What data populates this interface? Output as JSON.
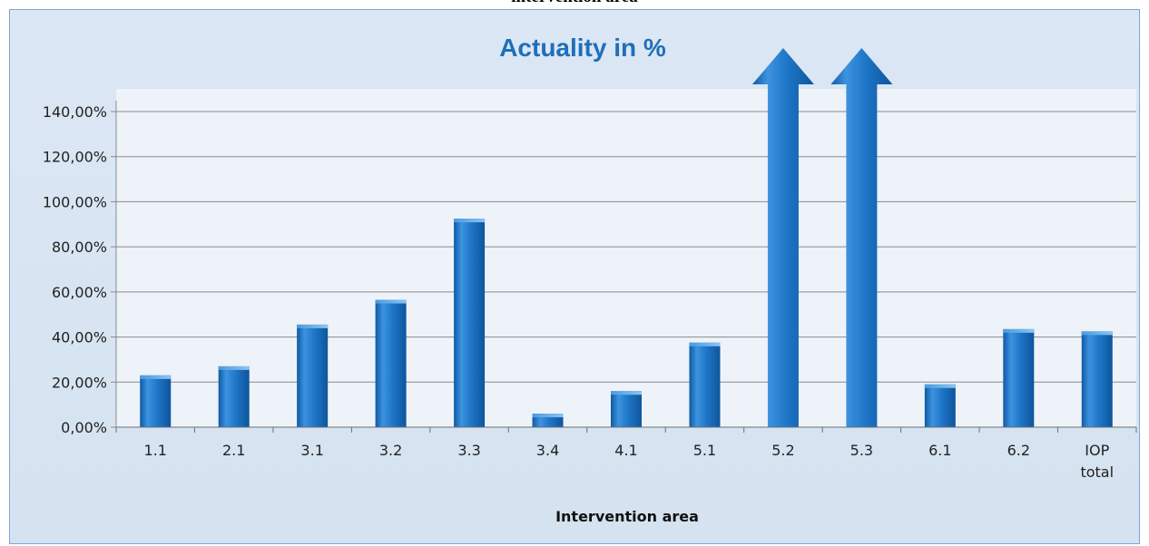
{
  "page": {
    "caption": "intervention area"
  },
  "chart_data": {
    "type": "bar",
    "title": "Actuality in %",
    "xlabel": "Intervention area",
    "ylabel": "",
    "categories": [
      "1.1",
      "2.1",
      "3.1",
      "3.2",
      "3.3",
      "3.4",
      "4.1",
      "5.1",
      "5.2",
      "5.3",
      "6.1",
      "6.2",
      "IOP total"
    ],
    "values": [
      23,
      27,
      45.5,
      56.5,
      92.5,
      6,
      16,
      37.5,
      142,
      150,
      19,
      43.5,
      42.5
    ],
    "value_notes": {
      "5.3": "exceeds axis maximum; drawn as an up-arrow"
    },
    "ylim": [
      0,
      140
    ],
    "y_ticks": [
      0,
      20,
      40,
      60,
      80,
      100,
      120,
      140
    ],
    "y_tick_labels": [
      "0,00%",
      "20,00%",
      "40,00%",
      "60,00%",
      "80,00%",
      "100,00%",
      "120,00%",
      "140,00%"
    ],
    "grid": true,
    "legend": "none",
    "colors": {
      "bar": "#1f77c8",
      "bar_dark": "#0f5aa5",
      "bar_light": "#5fa8e8",
      "title": "#1f6fb8",
      "grid": "#8a8a8a",
      "plot_bg": "#eef3f9"
    }
  }
}
